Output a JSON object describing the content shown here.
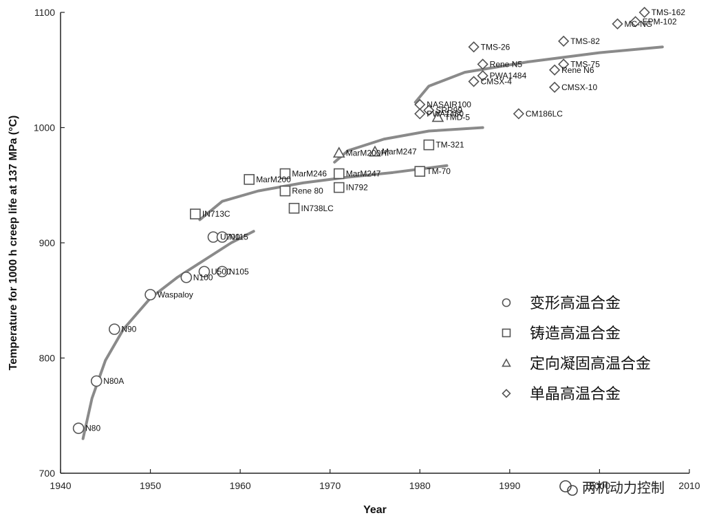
{
  "chart_data": {
    "type": "scatter",
    "title": "",
    "xlabel": "Year",
    "ylabel": "Temperature for 1000 h creep life at 137 MPa (°C)",
    "xlim": [
      1940,
      2010
    ],
    "ylim": [
      700,
      1100
    ],
    "xticks": [
      1940,
      1950,
      1960,
      1970,
      1980,
      1990,
      2000,
      2010
    ],
    "yticks": [
      700,
      800,
      900,
      1000,
      1100
    ],
    "grid": false,
    "legend_position": "right-center",
    "series": [
      {
        "name": "变形高温合金",
        "marker": "circle",
        "points": [
          {
            "label": "N80",
            "x": 1942,
            "y": 739
          },
          {
            "label": "N80A",
            "x": 1944,
            "y": 780
          },
          {
            "label": "N90",
            "x": 1946,
            "y": 825
          },
          {
            "label": "Waspaloy",
            "x": 1950,
            "y": 855
          },
          {
            "label": "N100",
            "x": 1954,
            "y": 870
          },
          {
            "label": "U500",
            "x": 1956,
            "y": 875
          },
          {
            "label": "U700",
            "x": 1957,
            "y": 905
          },
          {
            "label": "N115",
            "x": 1958,
            "y": 905
          },
          {
            "label": "N105",
            "x": 1958,
            "y": 875
          }
        ]
      },
      {
        "name": "铸造高温合金",
        "marker": "square",
        "points": [
          {
            "label": "IN713C",
            "x": 1955,
            "y": 925
          },
          {
            "label": "MarM200",
            "x": 1961,
            "y": 955
          },
          {
            "label": "MarM246",
            "x": 1965,
            "y": 960
          },
          {
            "label": "Rene 80",
            "x": 1965,
            "y": 945
          },
          {
            "label": "IN738LC",
            "x": 1966,
            "y": 930
          },
          {
            "label": "MarM247",
            "x": 1971,
            "y": 960
          },
          {
            "label": "IN792",
            "x": 1971,
            "y": 948
          },
          {
            "label": "TM-321",
            "x": 1981,
            "y": 985
          },
          {
            "label": "TM-70",
            "x": 1980,
            "y": 962
          }
        ]
      },
      {
        "name": "定向凝固高温合金",
        "marker": "triangle",
        "points": [
          {
            "label": "MarM200Hf",
            "x": 1971,
            "y": 978
          },
          {
            "label": "MarM247",
            "x": 1975,
            "y": 979
          },
          {
            "label": "TMD-5",
            "x": 1982,
            "y": 1009
          }
        ]
      },
      {
        "name": "单晶高温合金",
        "marker": "diamond",
        "points": [
          {
            "label": "NASAIR100",
            "x": 1980,
            "y": 1020
          },
          {
            "label": "PWA1480",
            "x": 1980,
            "y": 1012
          },
          {
            "label": "SRR99",
            "x": 1981,
            "y": 1015
          },
          {
            "label": "TMS-26",
            "x": 1986,
            "y": 1070
          },
          {
            "label": "CMSX-4",
            "x": 1986,
            "y": 1040
          },
          {
            "label": "Rene N5",
            "x": 1987,
            "y": 1055
          },
          {
            "label": "PWA1484",
            "x": 1987,
            "y": 1045
          },
          {
            "label": "CM186LC",
            "x": 1991,
            "y": 1012
          },
          {
            "label": "Rene N6",
            "x": 1995,
            "y": 1050
          },
          {
            "label": "CMSX-10",
            "x": 1995,
            "y": 1035
          },
          {
            "label": "TMS-82",
            "x": 1996,
            "y": 1075
          },
          {
            "label": "TMS-75",
            "x": 1996,
            "y": 1055
          },
          {
            "label": "MC-NG",
            "x": 2002,
            "y": 1090
          },
          {
            "label": "EPM-102",
            "x": 2004,
            "y": 1092
          },
          {
            "label": "TMS-162",
            "x": 2005,
            "y": 1100
          }
        ]
      }
    ],
    "trend_lines": [
      {
        "points": [
          [
            1942.5,
            730
          ],
          [
            1943.5,
            765
          ],
          [
            1945,
            798
          ],
          [
            1947,
            825
          ],
          [
            1950,
            852
          ],
          [
            1953,
            870
          ],
          [
            1956,
            885
          ],
          [
            1959,
            900
          ],
          [
            1961.5,
            910
          ]
        ]
      },
      {
        "points": [
          [
            1955.5,
            920
          ],
          [
            1958,
            936
          ],
          [
            1962,
            945
          ],
          [
            1967,
            952
          ],
          [
            1972,
            957
          ],
          [
            1977,
            961
          ],
          [
            1983,
            967
          ]
        ]
      },
      {
        "points": [
          [
            1970.5,
            970
          ],
          [
            1972,
            980
          ],
          [
            1976,
            990
          ],
          [
            1981,
            997
          ],
          [
            1987,
            1000
          ]
        ]
      },
      {
        "points": [
          [
            1979.5,
            1022
          ],
          [
            1981,
            1036
          ],
          [
            1985,
            1048
          ],
          [
            1992,
            1057
          ],
          [
            2000,
            1065
          ],
          [
            2007,
            1070
          ]
        ]
      }
    ]
  },
  "watermark": {
    "text": "两机动力控制"
  }
}
